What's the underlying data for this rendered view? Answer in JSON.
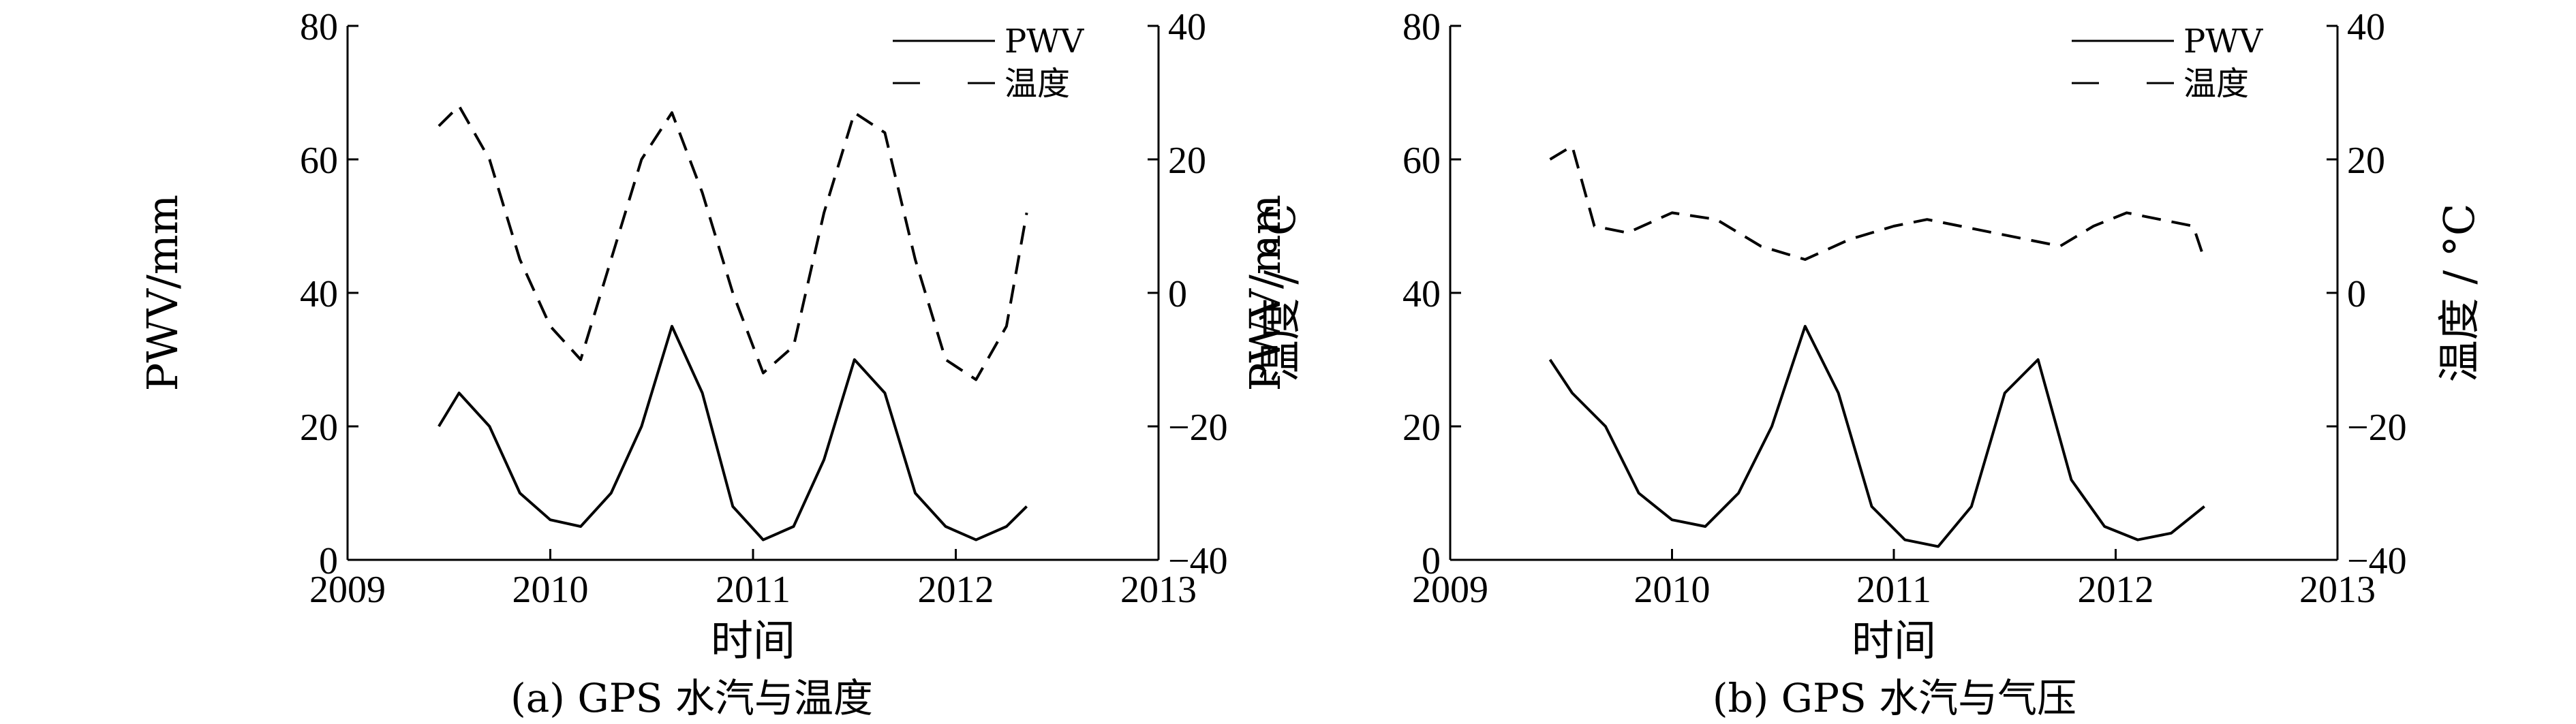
{
  "chart_data": [
    {
      "type": "line",
      "caption": "(a) GPS 水汽与温度",
      "xlabel": "时间",
      "ylabel_left": "PWV/mm",
      "ylabel_right": "温度 / °C",
      "xlim": [
        2009,
        2013
      ],
      "xticks": [
        "2009",
        "2010",
        "2011",
        "2012",
        "2013"
      ],
      "ylim_left": [
        0,
        80
      ],
      "yticks_left": [
        "0",
        "20",
        "40",
        "60",
        "80"
      ],
      "ylim_right": [
        -40,
        40
      ],
      "yticks_right": [
        "−40",
        "−20",
        "0",
        "20",
        "40"
      ],
      "legend": [
        "PWV",
        "温度"
      ],
      "legend_position": "top-right",
      "series": [
        {
          "name": "PWV",
          "axis": "left",
          "x": [
            2009.45,
            2009.55,
            2009.7,
            2009.85,
            2010.0,
            2010.15,
            2010.3,
            2010.45,
            2010.6,
            2010.75,
            2010.9,
            2011.05,
            2011.2,
            2011.35,
            2011.5,
            2011.65,
            2011.8,
            2011.95,
            2012.1,
            2012.25,
            2012.35
          ],
          "y": [
            20,
            25,
            20,
            10,
            6,
            5,
            10,
            20,
            35,
            25,
            8,
            3,
            5,
            15,
            30,
            25,
            10,
            5,
            3,
            5,
            8
          ]
        },
        {
          "name": "温度",
          "axis": "right",
          "x": [
            2009.45,
            2009.55,
            2009.7,
            2009.85,
            2010.0,
            2010.15,
            2010.3,
            2010.45,
            2010.6,
            2010.75,
            2010.9,
            2011.05,
            2011.2,
            2011.35,
            2011.5,
            2011.65,
            2011.8,
            2011.95,
            2012.1,
            2012.25,
            2012.35
          ],
          "y": [
            25,
            28,
            20,
            5,
            -5,
            -10,
            5,
            20,
            27,
            15,
            0,
            -12,
            -8,
            12,
            27,
            24,
            5,
            -10,
            -13,
            -5,
            12
          ]
        }
      ]
    },
    {
      "type": "line",
      "caption": "(b) GPS 水汽与气压",
      "xlabel": "时间",
      "ylabel_left": "PWV/mm",
      "ylabel_right": "温度 / °C",
      "xlim": [
        2009,
        2013
      ],
      "xticks": [
        "2009",
        "2010",
        "2011",
        "2012",
        "2013"
      ],
      "ylim_left": [
        0,
        80
      ],
      "yticks_left": [
        "0",
        "20",
        "40",
        "60",
        "80"
      ],
      "ylim_right": [
        -40,
        40
      ],
      "yticks_right": [
        "−40",
        "−20",
        "0",
        "20",
        "40"
      ],
      "legend": [
        "PWV",
        "温度"
      ],
      "legend_position": "top-right",
      "series": [
        {
          "name": "PWV",
          "axis": "left",
          "x": [
            2009.45,
            2009.55,
            2009.7,
            2009.85,
            2010.0,
            2010.15,
            2010.3,
            2010.45,
            2010.6,
            2010.75,
            2010.9,
            2011.05,
            2011.2,
            2011.35,
            2011.5,
            2011.65,
            2011.8,
            2011.95,
            2012.1,
            2012.25,
            2012.4
          ],
          "y": [
            30,
            25,
            20,
            10,
            6,
            5,
            10,
            20,
            35,
            25,
            8,
            3,
            2,
            8,
            25,
            30,
            12,
            5,
            3,
            4,
            8
          ]
        },
        {
          "name": "温度",
          "axis": "right",
          "x": [
            2009.45,
            2009.55,
            2009.65,
            2009.8,
            2010.0,
            2010.2,
            2010.4,
            2010.6,
            2010.8,
            2011.0,
            2011.15,
            2011.75,
            2011.9,
            2012.05,
            2012.2,
            2012.35,
            2012.4
          ],
          "y": [
            20,
            22,
            10,
            9,
            12,
            11,
            7,
            5,
            8,
            10,
            11,
            7,
            10,
            12,
            11,
            10,
            5
          ]
        }
      ]
    }
  ]
}
